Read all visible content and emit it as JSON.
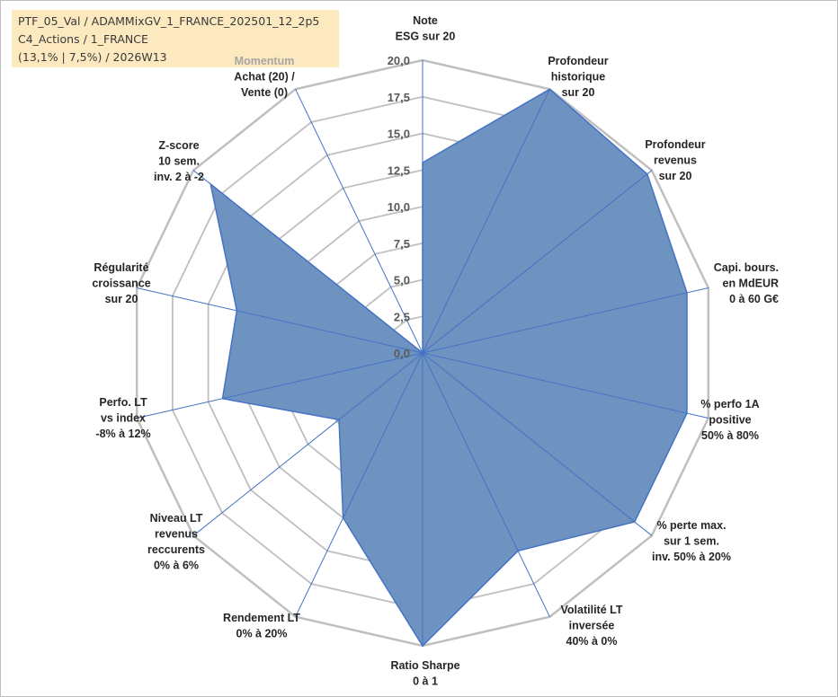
{
  "title": {
    "line1": "PTF_05_Val / ADAMMixGV_1_FRANCE_202501_12_2p5",
    "line2": "C4_Actions / 1_FRANCE",
    "line3": "(13,1% | 7,5%) / 2026W13"
  },
  "colors": {
    "fill": "#6f93c0",
    "stroke": "#4472c4",
    "grid": "#bfbfbf",
    "spoke": "#4472c4",
    "title_bg": "#fde9c0",
    "momentum": "#a6a6a6"
  },
  "chart_data": {
    "type": "radar",
    "title": "PTF_05_Val / ADAMMixGV_1_FRANCE_202501_12_2p5",
    "rlim": [
      0,
      20
    ],
    "tick_step": 2.5,
    "tick_labels": [
      "0,0",
      "2,5",
      "5,0",
      "7,5",
      "10,0",
      "12,5",
      "15,0",
      "17,5",
      "20,0"
    ],
    "axes": [
      {
        "label": [
          "Note",
          "ESG sur 20"
        ],
        "value": 13.0
      },
      {
        "label": [
          "Profondeur",
          "historique",
          "sur 20"
        ],
        "value": 20.0
      },
      {
        "label": [
          "Profondeur",
          "revenus",
          "sur 20"
        ],
        "value": 19.6
      },
      {
        "label": [
          "Capi. bours.",
          "en MdEUR",
          "0 à 60 G€"
        ],
        "value": 18.5
      },
      {
        "label": [
          "% perfo 1A",
          "positive",
          "50% à 80%"
        ],
        "value": 18.5
      },
      {
        "label": [
          "% perte max.",
          "sur 1 sem.",
          "inv. 50% à 20%"
        ],
        "value": 18.5
      },
      {
        "label": [
          "Volatilité LT",
          "inversée",
          "40% à 0%"
        ],
        "value": 15.0
      },
      {
        "label": [
          "Ratio Sharpe",
          "0 à 1"
        ],
        "value": 20.0
      },
      {
        "label": [
          "Rendement LT",
          "0% à 20%"
        ],
        "value": 12.5
      },
      {
        "label": [
          "Niveau LT",
          "revenus",
          "reccurents",
          "0% à 6%"
        ],
        "value": 7.3
      },
      {
        "label": [
          "Perfo. LT",
          "vs index",
          "-8% à 12%"
        ],
        "value": 14.0
      },
      {
        "label": [
          "Régularité",
          "croissance",
          "sur 20"
        ],
        "value": 13.0
      },
      {
        "label": [
          "Z-score",
          "10 sem.",
          "inv. 2 à -2"
        ],
        "value": 18.5
      },
      {
        "label": [
          "Momentum",
          "Achat (20) /",
          "Vente (0)"
        ],
        "value": 0.0
      }
    ]
  }
}
